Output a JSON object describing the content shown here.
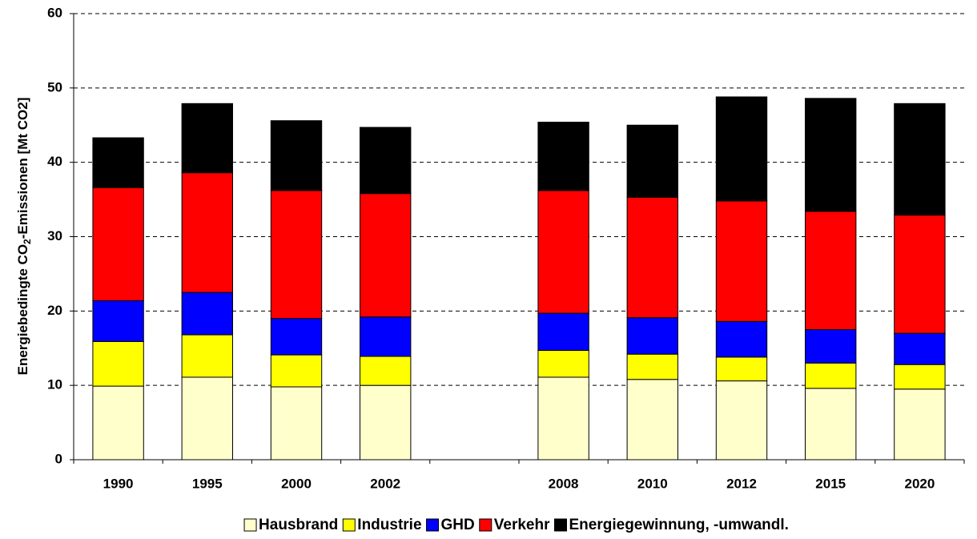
{
  "chart_data": {
    "type": "stacked_bar",
    "ylabel": [
      "Energiebedingte CO",
      "2",
      "-Emissionen [Mt CO2]"
    ],
    "categories": [
      "1990",
      "1995",
      "2000",
      "2002",
      null,
      "2008",
      "2010",
      "2012",
      "2015",
      "2020"
    ],
    "series": [
      {
        "name": "Hausbrand",
        "color": "#ffffcc",
        "values": [
          9.9,
          11.1,
          9.8,
          10.0,
          null,
          11.1,
          10.8,
          10.6,
          9.6,
          9.5
        ]
      },
      {
        "name": "Industrie",
        "color": "#ffff00",
        "values": [
          6.0,
          5.7,
          4.3,
          3.9,
          null,
          3.6,
          3.4,
          3.2,
          3.4,
          3.3
        ]
      },
      {
        "name": "GHD",
        "color": "#0000ff",
        "values": [
          5.5,
          5.7,
          4.9,
          5.3,
          null,
          5.0,
          4.9,
          4.8,
          4.5,
          4.2
        ]
      },
      {
        "name": "Verkehr",
        "color": "#ff0000",
        "values": [
          15.2,
          16.1,
          17.2,
          16.6,
          null,
          16.5,
          16.2,
          16.2,
          15.9,
          15.9
        ]
      },
      {
        "name": "Energiegewinnung, -umwandl.",
        "color": "#000000",
        "values": [
          6.7,
          9.3,
          9.4,
          8.9,
          null,
          9.2,
          9.7,
          14.0,
          15.2,
          15.0
        ]
      }
    ],
    "ylim": [
      0,
      60
    ],
    "yticks": [
      0,
      10,
      20,
      30,
      40,
      50,
      60
    ],
    "grid": true,
    "legend": "bottom"
  }
}
